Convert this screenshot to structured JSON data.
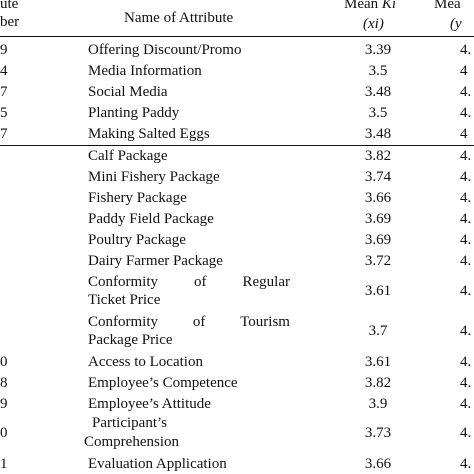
{
  "header": {
    "num_line1": "ute",
    "num_line2": "ber",
    "attr": "Name of Attribute",
    "mean_line1_prefix": "Mean ",
    "mean_line1_italic": "Ki",
    "mean_line2": "(xi)",
    "y_line1": "Mea",
    "y_line2": "(y"
  },
  "rows": [
    {
      "num": "9",
      "name": "Offering Discount/Promo",
      "mean": "3.39",
      "y": "4."
    },
    {
      "num": "4",
      "name": "Media Information",
      "mean": "3.5",
      "y": "4"
    },
    {
      "num": "7",
      "name": "Social Media",
      "mean": "3.48",
      "y": "4."
    },
    {
      "num": "5",
      "name": "Planting Paddy",
      "mean": "3.5",
      "y": "4."
    },
    {
      "num": "7",
      "name": "Making Salted Eggs",
      "mean": "3.48",
      "y": "4"
    },
    {
      "num": "",
      "name": "Calf Package",
      "mean": "3.82",
      "y": "4."
    },
    {
      "num": "",
      "name": "Mini Fishery Package",
      "mean": "3.74",
      "y": "4."
    },
    {
      "num": "",
      "name": "Fishery Package",
      "mean": "3.66",
      "y": "4."
    },
    {
      "num": "",
      "name": "Paddy Field Package",
      "mean": "3.69",
      "y": "4."
    },
    {
      "num": "",
      "name": "Poultry Package",
      "mean": "3.69",
      "y": "4."
    },
    {
      "num": "",
      "name": "Dairy Farmer Package",
      "mean": "3.72",
      "y": "4."
    },
    {
      "num": "",
      "name_l1": [
        "Conformity",
        "of",
        "Regular"
      ],
      "name_l2": "Ticket Price",
      "mean": "3.61",
      "y": "4."
    },
    {
      "num": "",
      "name_l1": [
        "Conformity",
        "of",
        "Tourism"
      ],
      "name_l2": "Package Price",
      "mean": "3.7",
      "y": "4."
    },
    {
      "num": "0",
      "name": "Access to Location",
      "mean": "3.61",
      "y": "4."
    },
    {
      "num": "8",
      "name": "Employee’s Competence",
      "mean": "3.82",
      "y": "4."
    },
    {
      "num": "9",
      "name": "Employee’s Attitude",
      "mean": "3.9",
      "y": "4."
    },
    {
      "num": "0",
      "name_l1": [
        "Participant’s"
      ],
      "name_l2": "Comprehension",
      "mean": "3.73",
      "y": "4."
    },
    {
      "num": "1",
      "name": "Evaluation Application",
      "mean": "3.66",
      "y": "4."
    }
  ]
}
